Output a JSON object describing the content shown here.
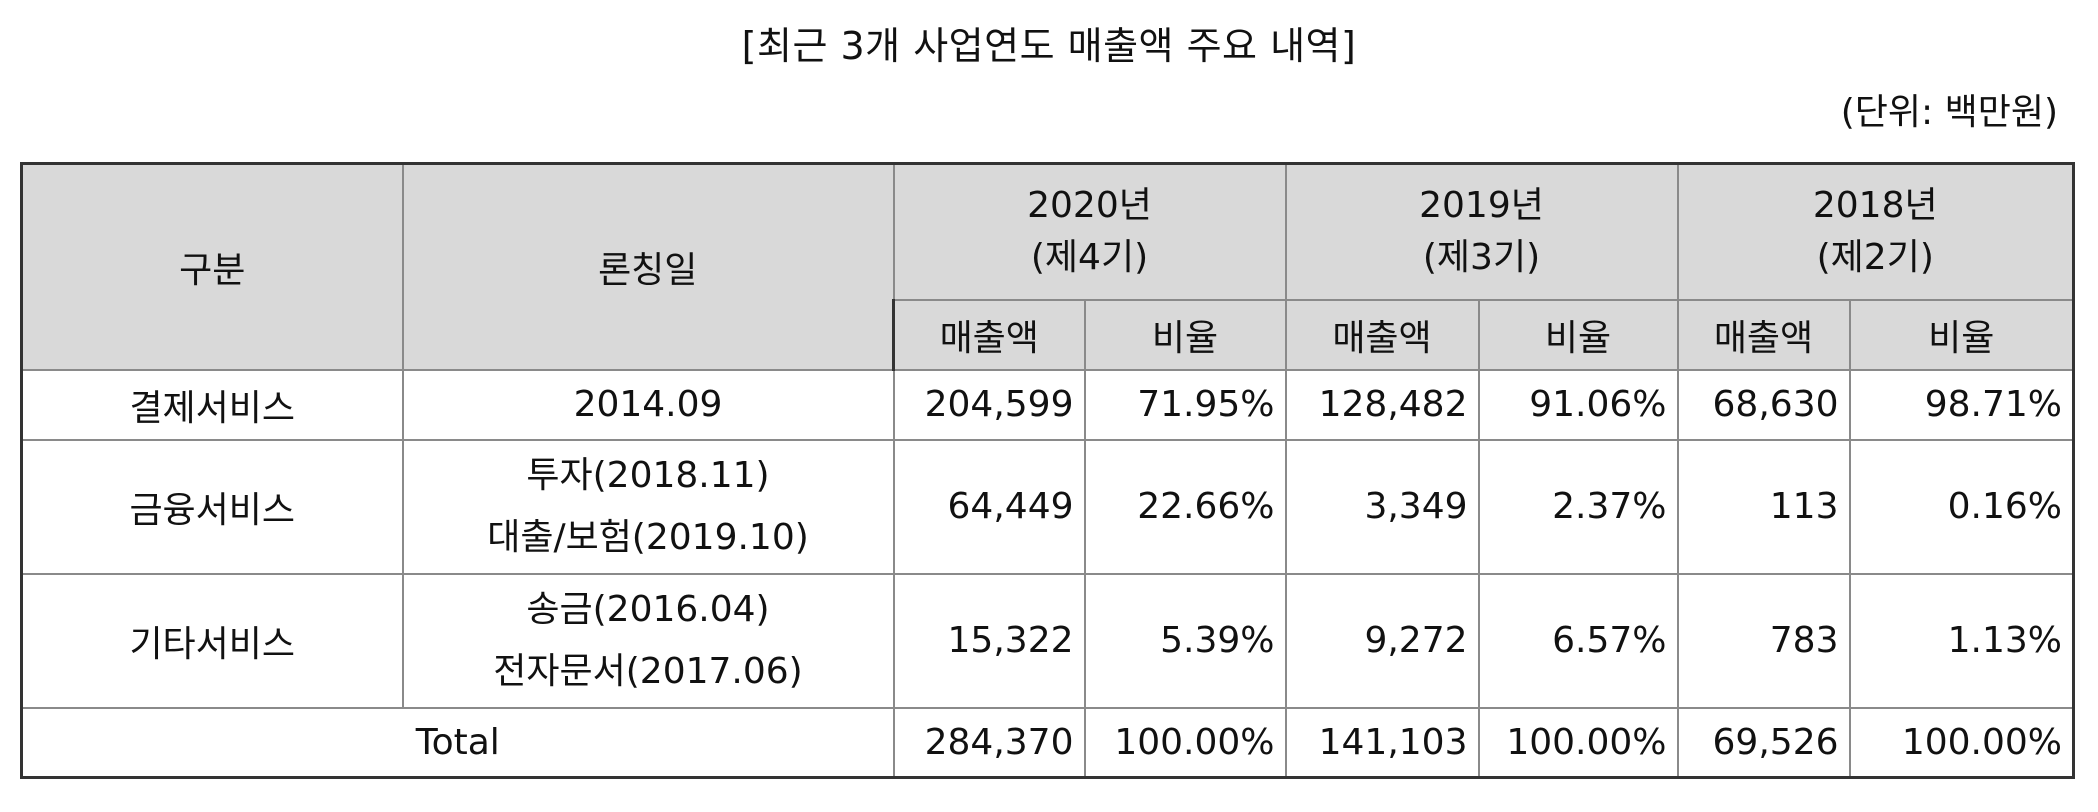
{
  "title": "[최근 3개 사업연도 매출액 주요 내역]",
  "unit": "(단위: 백만원)",
  "header": {
    "category": "구분",
    "launch_date": "론칭일",
    "years": [
      {
        "year": "2020년",
        "period": "(제4기)"
      },
      {
        "year": "2019년",
        "period": "(제3기)"
      },
      {
        "year": "2018년",
        "period": "(제2기)"
      }
    ],
    "revenue": "매출액",
    "ratio": "비율"
  },
  "rows": [
    {
      "category": "결제서비스",
      "launch": [
        "2014.09"
      ],
      "values": [
        {
          "revenue": "204,599",
          "ratio": "71.95%"
        },
        {
          "revenue": "128,482",
          "ratio": "91.06%"
        },
        {
          "revenue": "68,630",
          "ratio": "98.71%"
        }
      ]
    },
    {
      "category": "금융서비스",
      "launch": [
        "투자(2018.11)",
        "대출/보험(2019.10)"
      ],
      "values": [
        {
          "revenue": "64,449",
          "ratio": "22.66%"
        },
        {
          "revenue": "3,349",
          "ratio": "2.37%"
        },
        {
          "revenue": "113",
          "ratio": "0.16%"
        }
      ]
    },
    {
      "category": "기타서비스",
      "launch": [
        "송금(2016.04)",
        "전자문서(2017.06)"
      ],
      "values": [
        {
          "revenue": "15,322",
          "ratio": "5.39%"
        },
        {
          "revenue": "9,272",
          "ratio": "6.57%"
        },
        {
          "revenue": "783",
          "ratio": "1.13%"
        }
      ]
    }
  ],
  "total": {
    "label": "Total",
    "values": [
      {
        "revenue": "284,370",
        "ratio": "100.00%"
      },
      {
        "revenue": "141,103",
        "ratio": "100.00%"
      },
      {
        "revenue": "69,526",
        "ratio": "100.00%"
      }
    ]
  }
}
